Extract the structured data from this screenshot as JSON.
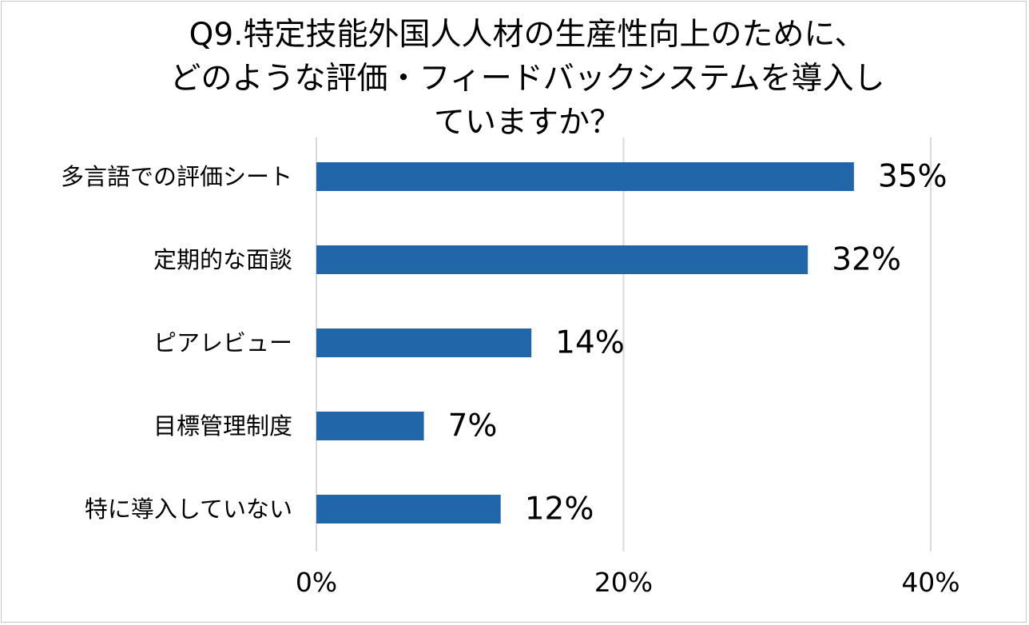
{
  "chart_data": {
    "type": "bar",
    "orientation": "horizontal",
    "title_lines": [
      "Q9.特定技能外国人人材の生産性向上のために、",
      "どのような評価・フィードバックシステムを導入し",
      "ていますか？"
    ],
    "categories": [
      "多言語での評価シート",
      "定期的な面談",
      "ピアレビュー",
      "目標管理制度",
      "特に導入していない"
    ],
    "values": [
      35,
      32,
      14,
      7,
      12
    ],
    "value_labels": [
      "35%",
      "32%",
      "14%",
      "7%",
      "12%"
    ],
    "x_ticks": [
      0,
      20,
      40
    ],
    "x_tick_labels": [
      "0%",
      "20%",
      "40%"
    ],
    "xlim": [
      0,
      40
    ],
    "grid": true,
    "legend": "none",
    "bar_color": "#2166a8",
    "grid_color": "#d9d9d9"
  }
}
